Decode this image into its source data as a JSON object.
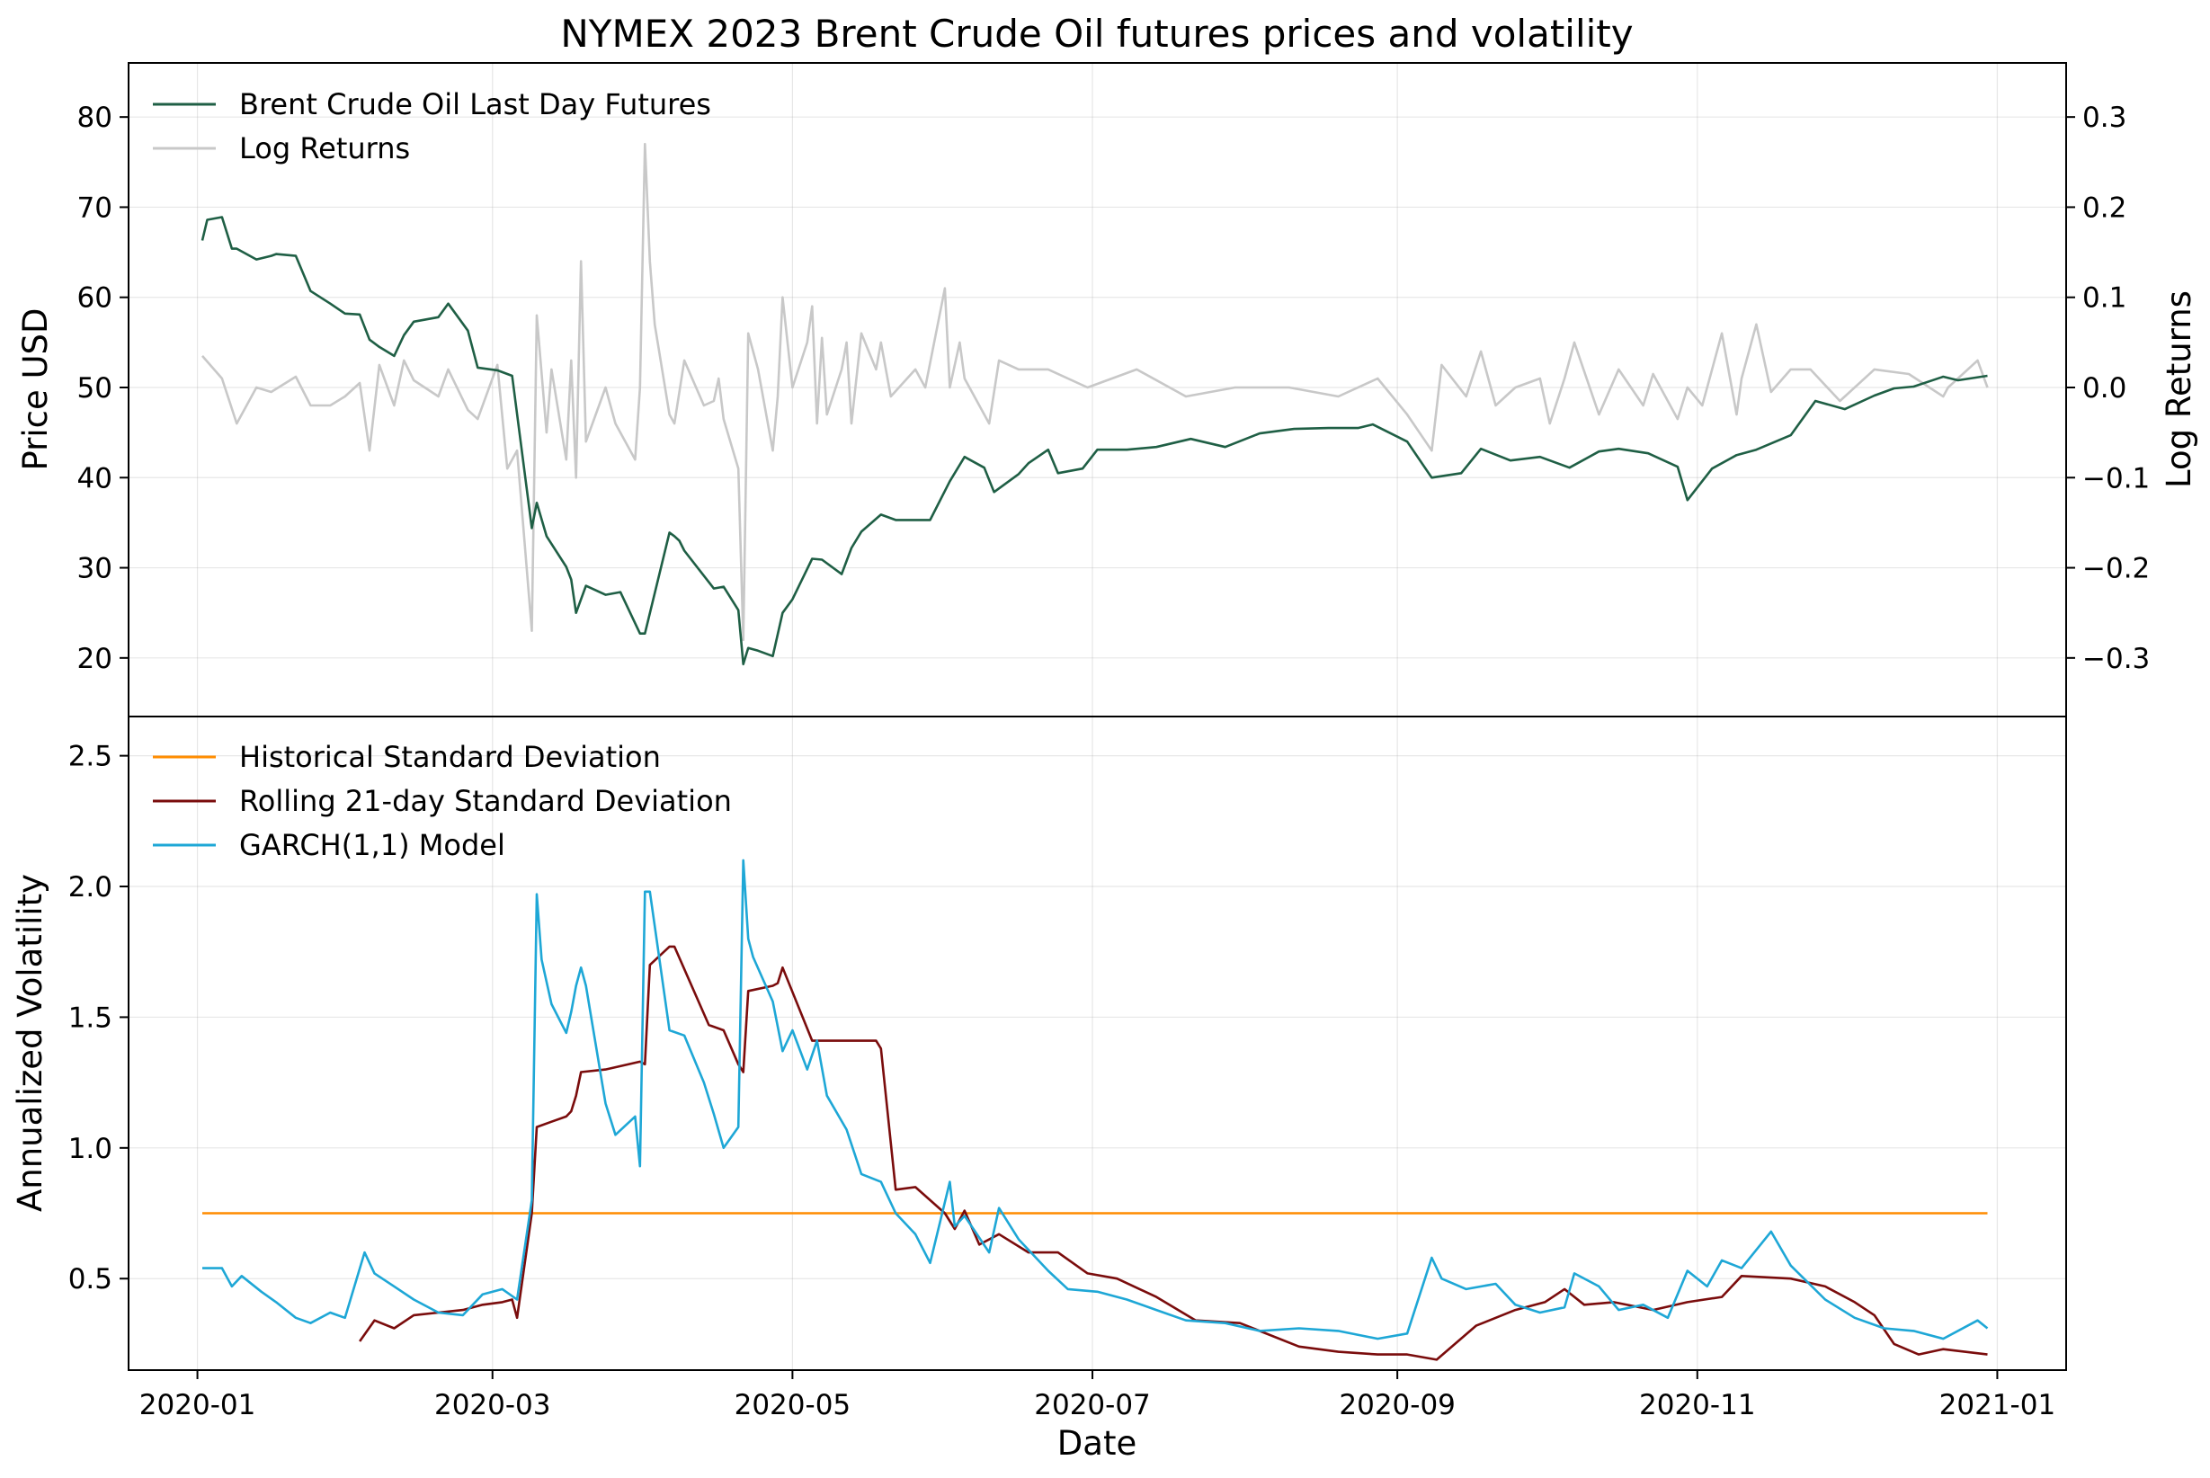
{
  "title": "NYMEX 2023 Brent Crude Oil futures prices and volatility",
  "colors": {
    "price": "#1f5f45",
    "log_returns": "#c8c8c8",
    "historical_sd": "#ff8c00",
    "rolling_sd": "#7a0c0c",
    "garch": "#1ea7d6"
  },
  "chart_data": [
    {
      "type": "line",
      "panel": "top",
      "xlabel": "",
      "ylabel": "Price USD",
      "ylabel_right": "Log Returns",
      "x_range": [
        "2019-12-18",
        "2021-01-15"
      ],
      "ylim": [
        13.5,
        86
      ],
      "ylim_right": [
        -0.365,
        0.36
      ],
      "y_ticks": [
        20,
        30,
        40,
        50,
        60,
        70,
        80
      ],
      "y_ticks_right": [
        -0.3,
        -0.2,
        -0.1,
        0.0,
        0.1,
        0.2,
        0.3
      ],
      "y_tick_labels_right": [
        "−0.3",
        "−0.2",
        "−0.1",
        "0.0",
        "0.1",
        "0.2",
        "0.3"
      ],
      "grid": true,
      "legend_placement": "top-left",
      "legend": [
        "Brent Crude Oil Last Day Futures",
        "Log Returns"
      ],
      "series": [
        {
          "name": "Brent Crude Oil Last Day Futures",
          "axis": "left",
          "x": [
            "2020-01-02",
            "2020-01-03",
            "2020-01-06",
            "2020-01-08",
            "2020-01-09",
            "2020-01-13",
            "2020-01-16",
            "2020-01-17",
            "2020-01-21",
            "2020-01-24",
            "2020-01-28",
            "2020-01-31",
            "2020-02-03",
            "2020-02-05",
            "2020-02-07",
            "2020-02-10",
            "2020-02-12",
            "2020-02-14",
            "2020-02-19",
            "2020-02-21",
            "2020-02-25",
            "2020-02-27",
            "2020-03-02",
            "2020-03-05",
            "2020-03-09",
            "2020-03-10",
            "2020-03-12",
            "2020-03-16",
            "2020-03-17",
            "2020-03-18",
            "2020-03-20",
            "2020-03-24",
            "2020-03-27",
            "2020-03-31",
            "2020-04-01",
            "2020-04-06",
            "2020-04-07",
            "2020-04-08",
            "2020-04-09",
            "2020-04-15",
            "2020-04-17",
            "2020-04-20",
            "2020-04-21",
            "2020-04-22",
            "2020-04-24",
            "2020-04-27",
            "2020-04-29",
            "2020-05-01",
            "2020-05-05",
            "2020-05-07",
            "2020-05-11",
            "2020-05-13",
            "2020-05-15",
            "2020-05-19",
            "2020-05-22",
            "2020-05-27",
            "2020-05-29",
            "2020-06-02",
            "2020-06-05",
            "2020-06-09",
            "2020-06-11",
            "2020-06-16",
            "2020-06-18",
            "2020-06-22",
            "2020-06-24",
            "2020-06-29",
            "2020-07-02",
            "2020-07-08",
            "2020-07-14",
            "2020-07-21",
            "2020-07-28",
            "2020-08-04",
            "2020-08-11",
            "2020-08-18",
            "2020-08-24",
            "2020-08-27",
            "2020-09-03",
            "2020-09-08",
            "2020-09-14",
            "2020-09-18",
            "2020-09-24",
            "2020-09-30",
            "2020-10-06",
            "2020-10-12",
            "2020-10-16",
            "2020-10-22",
            "2020-10-28",
            "2020-10-30",
            "2020-11-04",
            "2020-11-09",
            "2020-11-13",
            "2020-11-20",
            "2020-11-25",
            "2020-12-01",
            "2020-12-07",
            "2020-12-11",
            "2020-12-15",
            "2020-12-21",
            "2020-12-24",
            "2020-12-30"
          ],
          "y": [
            66.3,
            68.6,
            68.9,
            65.4,
            65.4,
            64.2,
            64.6,
            64.8,
            64.6,
            60.7,
            59.3,
            58.2,
            58.1,
            55.3,
            54.5,
            53.5,
            55.8,
            57.3,
            57.8,
            59.3,
            56.3,
            52.2,
            51.9,
            51.3,
            34.4,
            37.2,
            33.5,
            30.1,
            28.7,
            25.0,
            28.0,
            27.0,
            27.3,
            22.7,
            22.7,
            33.9,
            33.5,
            33.0,
            31.9,
            27.7,
            27.9,
            25.3,
            19.3,
            21.1,
            20.8,
            20.2,
            25.0,
            26.5,
            31.0,
            30.9,
            29.3,
            32.2,
            34.0,
            35.9,
            35.3,
            35.3,
            35.3,
            39.6,
            42.3,
            41.1,
            38.4,
            40.4,
            41.6,
            43.1,
            40.5,
            41.0,
            43.1,
            43.1,
            43.4,
            44.3,
            43.4,
            44.9,
            45.4,
            45.5,
            45.5,
            45.9,
            44.0,
            40.0,
            40.5,
            43.2,
            41.9,
            42.3,
            41.1,
            42.9,
            43.2,
            42.7,
            41.2,
            37.5,
            41.0,
            42.5,
            43.1,
            44.7,
            48.5,
            47.6,
            49.1,
            49.9,
            50.1,
            51.2,
            50.8,
            51.3
          ]
        },
        {
          "name": "Log Returns",
          "axis": "right",
          "x": [
            "2020-01-02",
            "2020-01-06",
            "2020-01-09",
            "2020-01-13",
            "2020-01-16",
            "2020-01-21",
            "2020-01-24",
            "2020-01-28",
            "2020-01-31",
            "2020-02-03",
            "2020-02-05",
            "2020-02-07",
            "2020-02-10",
            "2020-02-12",
            "2020-02-14",
            "2020-02-19",
            "2020-02-21",
            "2020-02-25",
            "2020-02-27",
            "2020-03-02",
            "2020-03-04",
            "2020-03-06",
            "2020-03-09",
            "2020-03-10",
            "2020-03-12",
            "2020-03-13",
            "2020-03-16",
            "2020-03-17",
            "2020-03-18",
            "2020-03-19",
            "2020-03-20",
            "2020-03-24",
            "2020-03-26",
            "2020-03-30",
            "2020-03-31",
            "2020-04-01",
            "2020-04-02",
            "2020-04-03",
            "2020-04-06",
            "2020-04-07",
            "2020-04-09",
            "2020-04-13",
            "2020-04-15",
            "2020-04-16",
            "2020-04-17",
            "2020-04-20",
            "2020-04-21",
            "2020-04-22",
            "2020-04-24",
            "2020-04-27",
            "2020-04-28",
            "2020-04-29",
            "2020-05-01",
            "2020-05-04",
            "2020-05-05",
            "2020-05-06",
            "2020-05-07",
            "2020-05-08",
            "2020-05-11",
            "2020-05-12",
            "2020-05-13",
            "2020-05-15",
            "2020-05-18",
            "2020-05-19",
            "2020-05-21",
            "2020-05-26",
            "2020-05-28",
            "2020-06-01",
            "2020-06-02",
            "2020-06-04",
            "2020-06-05",
            "2020-06-10",
            "2020-06-12",
            "2020-06-16",
            "2020-06-22",
            "2020-06-30",
            "2020-07-10",
            "2020-07-20",
            "2020-07-30",
            "2020-08-10",
            "2020-08-20",
            "2020-08-28",
            "2020-09-03",
            "2020-09-08",
            "2020-09-10",
            "2020-09-15",
            "2020-09-18",
            "2020-09-21",
            "2020-09-25",
            "2020-09-30",
            "2020-10-02",
            "2020-10-05",
            "2020-10-07",
            "2020-10-12",
            "2020-10-16",
            "2020-10-21",
            "2020-10-23",
            "2020-10-28",
            "2020-10-30",
            "2020-11-02",
            "2020-11-06",
            "2020-11-09",
            "2020-11-10",
            "2020-11-13",
            "2020-11-16",
            "2020-11-20",
            "2020-11-24",
            "2020-11-30",
            "2020-12-07",
            "2020-12-14",
            "2020-12-21",
            "2020-12-22",
            "2020-12-28",
            "2020-12-30"
          ],
          "y": [
            0.035,
            0.01,
            -0.04,
            0.0,
            -0.005,
            0.012,
            -0.02,
            -0.02,
            -0.01,
            0.005,
            -0.07,
            0.025,
            -0.02,
            0.03,
            0.008,
            -0.01,
            0.02,
            -0.025,
            -0.035,
            0.025,
            -0.09,
            -0.07,
            -0.27,
            0.08,
            -0.05,
            0.02,
            -0.08,
            0.03,
            -0.1,
            0.14,
            -0.06,
            0.0,
            -0.04,
            -0.08,
            0.0,
            0.27,
            0.14,
            0.07,
            -0.03,
            -0.04,
            0.03,
            -0.02,
            -0.015,
            0.01,
            -0.035,
            -0.09,
            -0.28,
            0.06,
            0.02,
            -0.07,
            -0.01,
            0.1,
            0.0,
            0.05,
            0.09,
            -0.04,
            0.055,
            -0.03,
            0.02,
            0.05,
            -0.04,
            0.06,
            0.02,
            0.05,
            -0.01,
            0.02,
            0.0,
            0.11,
            0.0,
            0.05,
            0.01,
            -0.04,
            0.03,
            0.02,
            0.02,
            0.0,
            0.02,
            -0.01,
            0.0,
            0.0,
            -0.01,
            0.01,
            -0.03,
            -0.07,
            0.025,
            -0.01,
            0.04,
            -0.02,
            0.0,
            0.01,
            -0.04,
            0.01,
            0.05,
            -0.03,
            0.02,
            -0.02,
            0.015,
            -0.035,
            0.0,
            -0.02,
            0.06,
            -0.03,
            0.01,
            0.07,
            -0.005,
            0.02,
            0.02,
            -0.015,
            0.02,
            0.015,
            -0.01,
            0.0,
            0.03,
            0.0
          ]
        }
      ]
    },
    {
      "type": "line",
      "panel": "bottom",
      "xlabel": "Date",
      "ylabel": "Annualized Volatility",
      "x_range": [
        "2019-12-18",
        "2021-01-15"
      ],
      "ylim": [
        0.15,
        2.65
      ],
      "y_ticks": [
        0.5,
        1.0,
        1.5,
        2.0,
        2.5
      ],
      "x_ticks": [
        "2020-01-01",
        "2020-03-01",
        "2020-05-01",
        "2020-07-01",
        "2020-09-01",
        "2020-11-01",
        "2021-01-01"
      ],
      "x_tick_labels": [
        "2020-01",
        "2020-03",
        "2020-05",
        "2020-07",
        "2020-09",
        "2020-11",
        "2021-01"
      ],
      "grid": true,
      "legend_placement": "top-left",
      "legend": [
        "Historical Standard Deviation",
        "Rolling 21-day Standard Deviation",
        "GARCH(1,1) Model"
      ],
      "series": [
        {
          "name": "Historical Standard Deviation",
          "x": [
            "2020-01-02",
            "2020-12-30"
          ],
          "y": [
            0.75,
            0.75
          ]
        },
        {
          "name": "Rolling 21-day Standard Deviation",
          "x": [
            "2020-02-03",
            "2020-02-06",
            "2020-02-10",
            "2020-02-14",
            "2020-02-19",
            "2020-02-24",
            "2020-02-28",
            "2020-03-03",
            "2020-03-05",
            "2020-03-06",
            "2020-03-09",
            "2020-03-10",
            "2020-03-13",
            "2020-03-16",
            "2020-03-17",
            "2020-03-18",
            "2020-03-19",
            "2020-03-24",
            "2020-03-31",
            "2020-04-01",
            "2020-04-02",
            "2020-04-06",
            "2020-04-07",
            "2020-04-14",
            "2020-04-17",
            "2020-04-20",
            "2020-04-21",
            "2020-04-22",
            "2020-04-27",
            "2020-04-28",
            "2020-04-29",
            "2020-05-05",
            "2020-05-18",
            "2020-05-19",
            "2020-05-22",
            "2020-05-26",
            "2020-06-01",
            "2020-06-03",
            "2020-06-05",
            "2020-06-08",
            "2020-06-12",
            "2020-06-18",
            "2020-06-24",
            "2020-06-30",
            "2020-07-06",
            "2020-07-14",
            "2020-07-22",
            "2020-07-31",
            "2020-08-12",
            "2020-08-20",
            "2020-08-28",
            "2020-09-03",
            "2020-09-09",
            "2020-09-17",
            "2020-09-25",
            "2020-10-01",
            "2020-10-05",
            "2020-10-09",
            "2020-10-15",
            "2020-10-23",
            "2020-10-30",
            "2020-11-06",
            "2020-11-10",
            "2020-11-20",
            "2020-11-27",
            "2020-12-03",
            "2020-12-07",
            "2020-12-11",
            "2020-12-16",
            "2020-12-21",
            "2020-12-30"
          ],
          "y": [
            0.26,
            0.34,
            0.31,
            0.36,
            0.37,
            0.38,
            0.4,
            0.41,
            0.42,
            0.35,
            0.75,
            1.08,
            1.1,
            1.12,
            1.14,
            1.2,
            1.29,
            1.3,
            1.33,
            1.32,
            1.7,
            1.77,
            1.77,
            1.47,
            1.45,
            1.32,
            1.29,
            1.6,
            1.62,
            1.63,
            1.69,
            1.41,
            1.41,
            1.38,
            0.84,
            0.85,
            0.75,
            0.69,
            0.76,
            0.63,
            0.67,
            0.6,
            0.6,
            0.52,
            0.5,
            0.43,
            0.34,
            0.33,
            0.24,
            0.22,
            0.21,
            0.21,
            0.19,
            0.32,
            0.38,
            0.41,
            0.46,
            0.4,
            0.41,
            0.38,
            0.41,
            0.43,
            0.51,
            0.5,
            0.47,
            0.41,
            0.36,
            0.25,
            0.21,
            0.23,
            0.21
          ]
        },
        {
          "name": "GARCH(1,1) Model",
          "x": [
            "2020-01-02",
            "2020-01-06",
            "2020-01-08",
            "2020-01-10",
            "2020-01-14",
            "2020-01-17",
            "2020-01-21",
            "2020-01-24",
            "2020-01-28",
            "2020-01-31",
            "2020-02-04",
            "2020-02-06",
            "2020-02-10",
            "2020-02-14",
            "2020-02-19",
            "2020-02-24",
            "2020-02-28",
            "2020-03-03",
            "2020-03-06",
            "2020-03-09",
            "2020-03-10",
            "2020-03-11",
            "2020-03-13",
            "2020-03-16",
            "2020-03-17",
            "2020-03-18",
            "2020-03-19",
            "2020-03-20",
            "2020-03-24",
            "2020-03-26",
            "2020-03-30",
            "2020-03-31",
            "2020-04-01",
            "2020-04-02",
            "2020-04-06",
            "2020-04-09",
            "2020-04-13",
            "2020-04-15",
            "2020-04-17",
            "2020-04-20",
            "2020-04-21",
            "2020-04-22",
            "2020-04-23",
            "2020-04-27",
            "2020-04-29",
            "2020-05-01",
            "2020-05-04",
            "2020-05-06",
            "2020-05-08",
            "2020-05-12",
            "2020-05-15",
            "2020-05-19",
            "2020-05-22",
            "2020-05-26",
            "2020-05-29",
            "2020-06-02",
            "2020-06-03",
            "2020-06-05",
            "2020-06-10",
            "2020-06-12",
            "2020-06-16",
            "2020-06-22",
            "2020-06-26",
            "2020-07-02",
            "2020-07-08",
            "2020-07-14",
            "2020-07-20",
            "2020-07-28",
            "2020-08-04",
            "2020-08-12",
            "2020-08-20",
            "2020-08-28",
            "2020-09-03",
            "2020-09-08",
            "2020-09-10",
            "2020-09-15",
            "2020-09-21",
            "2020-09-25",
            "2020-09-30",
            "2020-10-05",
            "2020-10-07",
            "2020-10-12",
            "2020-10-16",
            "2020-10-21",
            "2020-10-26",
            "2020-10-30",
            "2020-11-03",
            "2020-11-06",
            "2020-11-10",
            "2020-11-16",
            "2020-11-20",
            "2020-11-27",
            "2020-12-03",
            "2020-12-09",
            "2020-12-15",
            "2020-12-21",
            "2020-12-28",
            "2020-12-30"
          ],
          "y": [
            0.54,
            0.54,
            0.47,
            0.51,
            0.45,
            0.41,
            0.35,
            0.33,
            0.37,
            0.35,
            0.6,
            0.52,
            0.47,
            0.42,
            0.37,
            0.36,
            0.44,
            0.46,
            0.42,
            0.8,
            1.97,
            1.72,
            1.55,
            1.44,
            1.52,
            1.62,
            1.69,
            1.62,
            1.17,
            1.05,
            1.12,
            0.93,
            1.98,
            1.98,
            1.45,
            1.43,
            1.25,
            1.13,
            1.0,
            1.08,
            2.1,
            1.8,
            1.73,
            1.56,
            1.37,
            1.45,
            1.3,
            1.41,
            1.2,
            1.07,
            0.9,
            0.87,
            0.75,
            0.67,
            0.56,
            0.87,
            0.7,
            0.74,
            0.6,
            0.77,
            0.65,
            0.53,
            0.46,
            0.45,
            0.42,
            0.38,
            0.34,
            0.33,
            0.3,
            0.31,
            0.3,
            0.27,
            0.29,
            0.58,
            0.5,
            0.46,
            0.48,
            0.4,
            0.37,
            0.39,
            0.52,
            0.47,
            0.38,
            0.4,
            0.35,
            0.53,
            0.47,
            0.57,
            0.54,
            0.68,
            0.55,
            0.42,
            0.35,
            0.31,
            0.3,
            0.27,
            0.34,
            0.31
          ]
        }
      ]
    }
  ]
}
